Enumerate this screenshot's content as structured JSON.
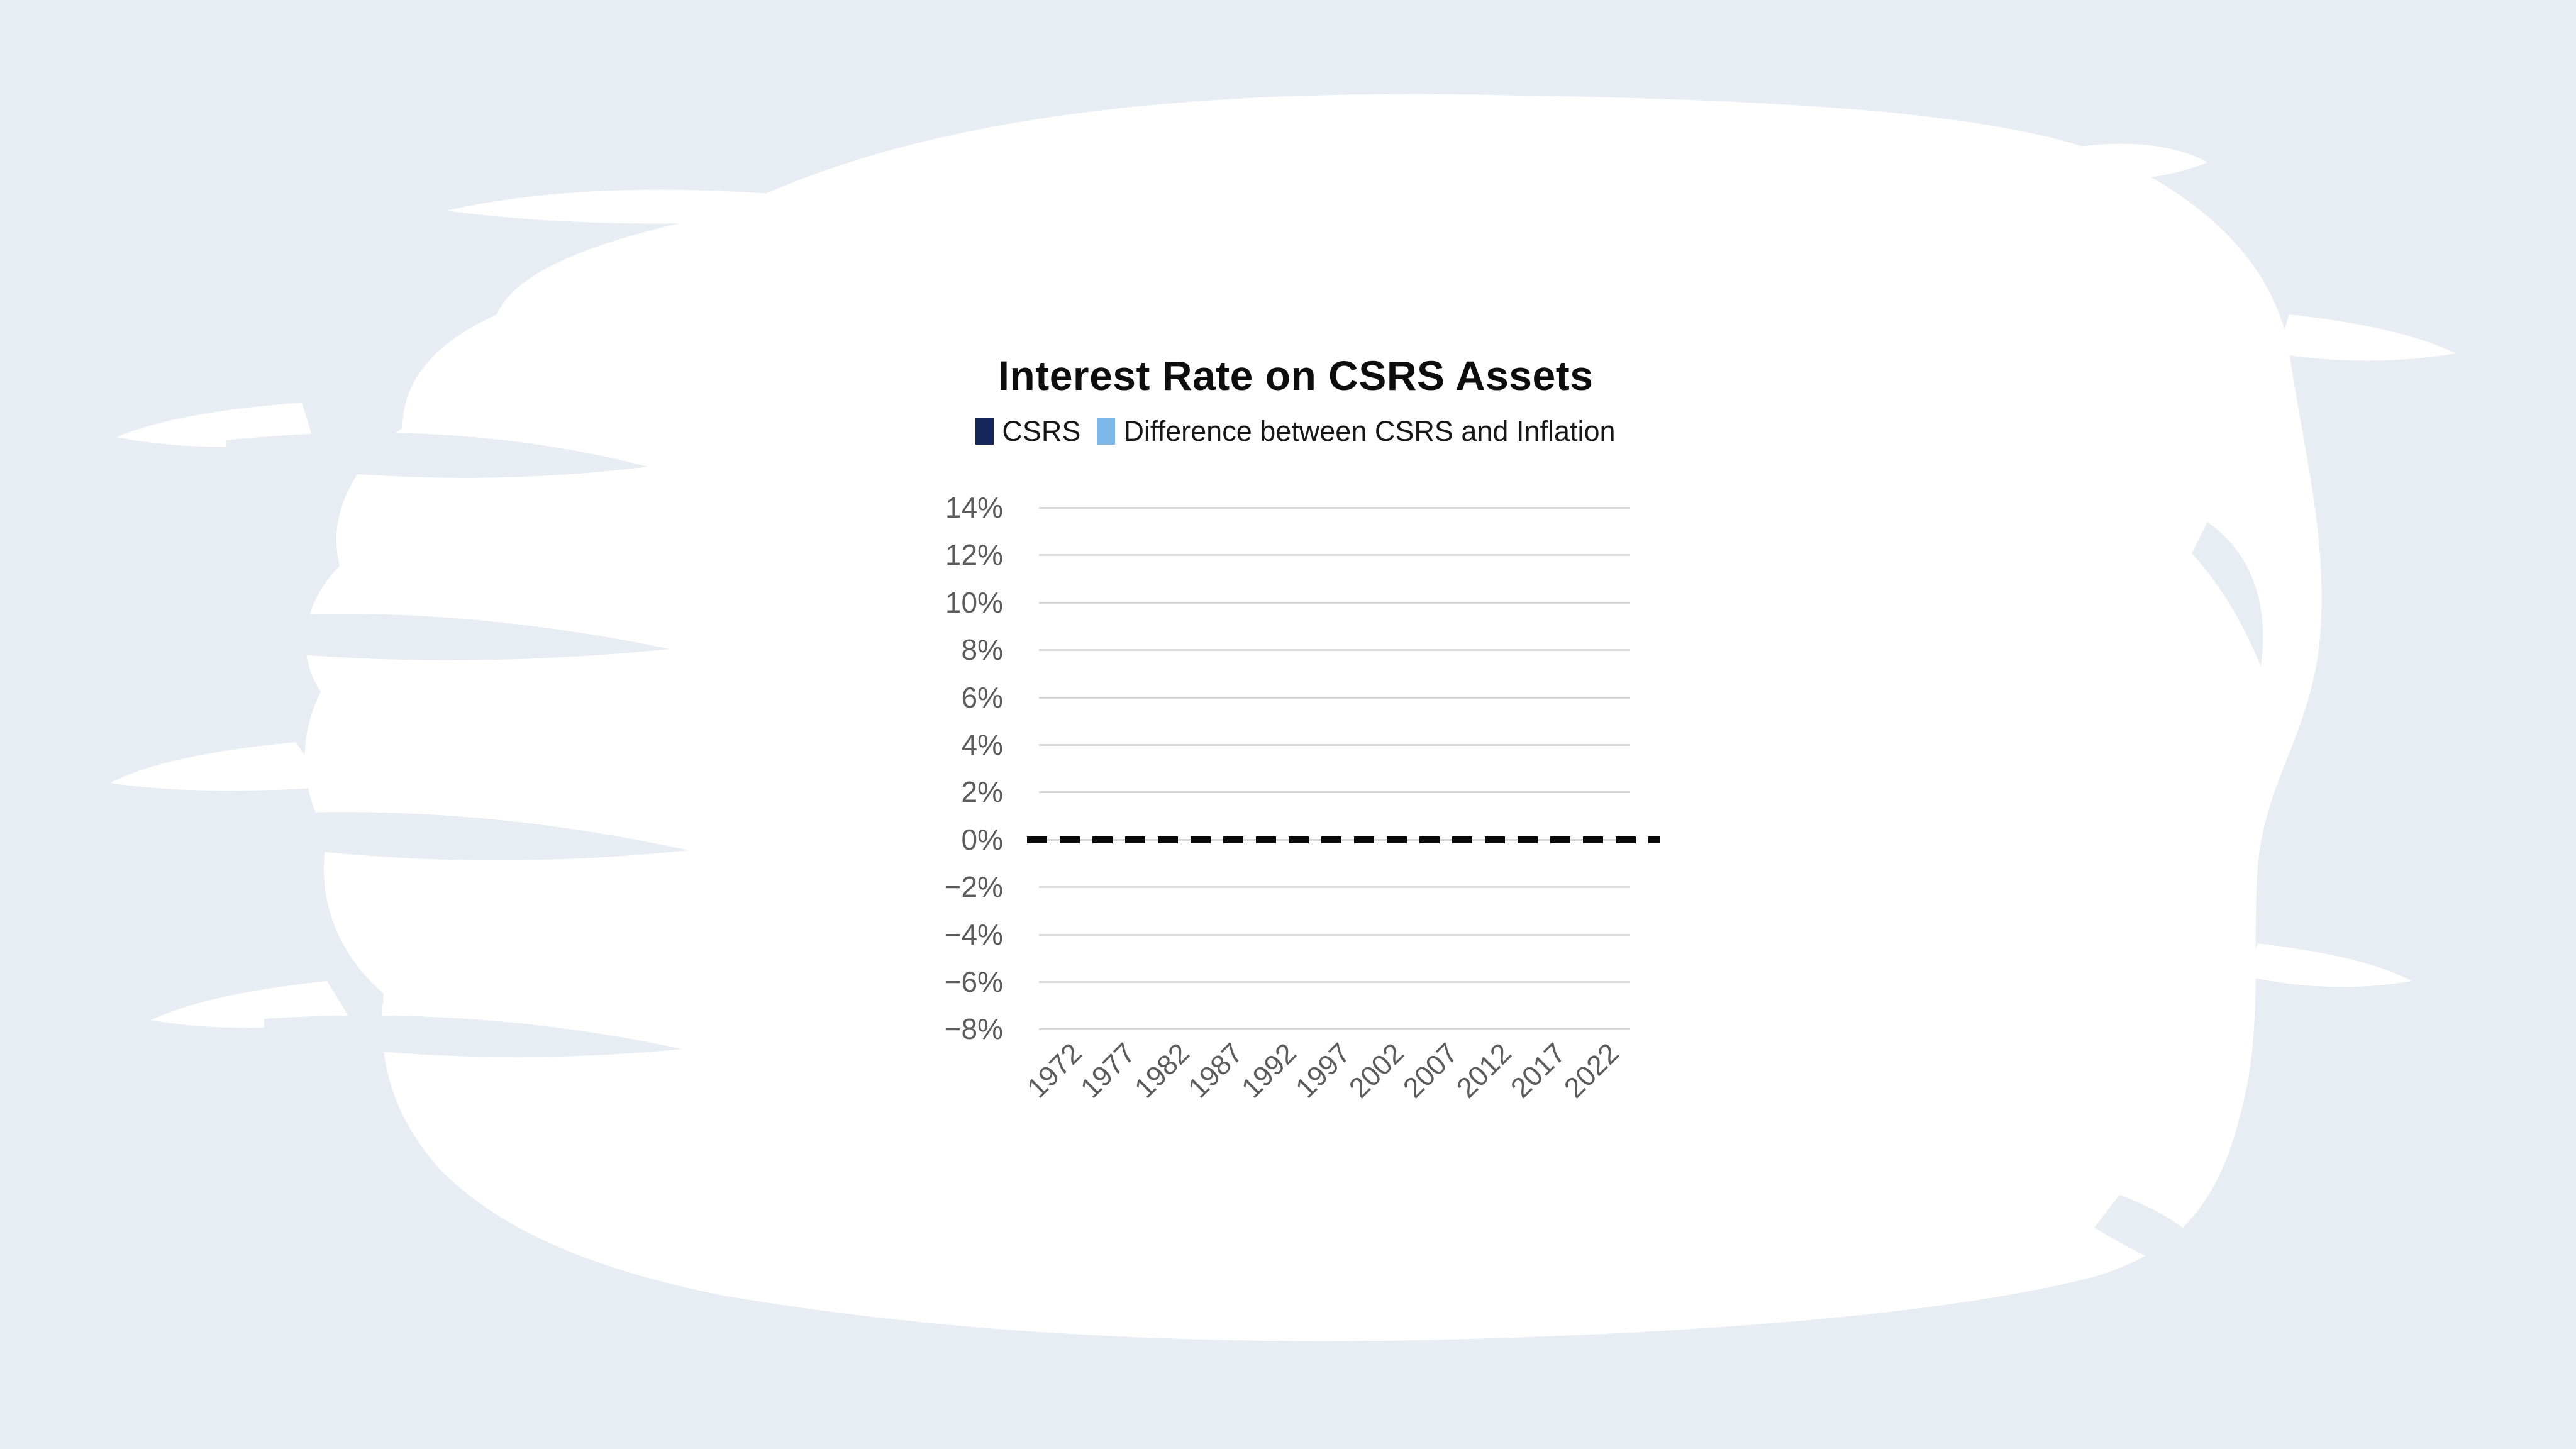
{
  "page": {
    "background_color": "#e7edf3",
    "brush_stroke_color": "#ffffff"
  },
  "chart": {
    "title": "Interest Rate on CSRS Assets",
    "legend": {
      "items": [
        {
          "label": "CSRS",
          "color": "#14265a"
        },
        {
          "label": "Difference between CSRS and Inflation",
          "color": "#7db7e8"
        }
      ]
    }
  },
  "chart_data": {
    "type": "bar",
    "title": "Interest Rate on CSRS Assets",
    "categories": [
      "1972",
      "1977",
      "1982",
      "1987",
      "1992",
      "1997",
      "2002",
      "2007",
      "2012",
      "2017",
      "2022"
    ],
    "series": [
      {
        "name": "CSRS",
        "color": "#14265a",
        "values": []
      },
      {
        "name": "Difference between CSRS and Inflation",
        "color": "#7db7e8",
        "values": []
      }
    ],
    "bars_visible": false,
    "baseline": {
      "value": 0,
      "style": "dashed",
      "color": "#0a0a0a"
    },
    "y_axis": {
      "min": -8,
      "max": 14,
      "step": 2,
      "suffix": "%",
      "tick_labels": [
        "14%",
        "12%",
        "10%",
        "8%",
        "6%",
        "4%",
        "2%",
        "0%",
        "−2%",
        "−4%",
        "−6%",
        "−8%"
      ]
    },
    "x_axis": {
      "tick_rotation_deg": -45
    },
    "grid": true,
    "gridline_color": "#d8d8d8",
    "axis_label_color": "#5c5c5c",
    "legend_position": "top",
    "ylabel": "",
    "xlabel": ""
  }
}
